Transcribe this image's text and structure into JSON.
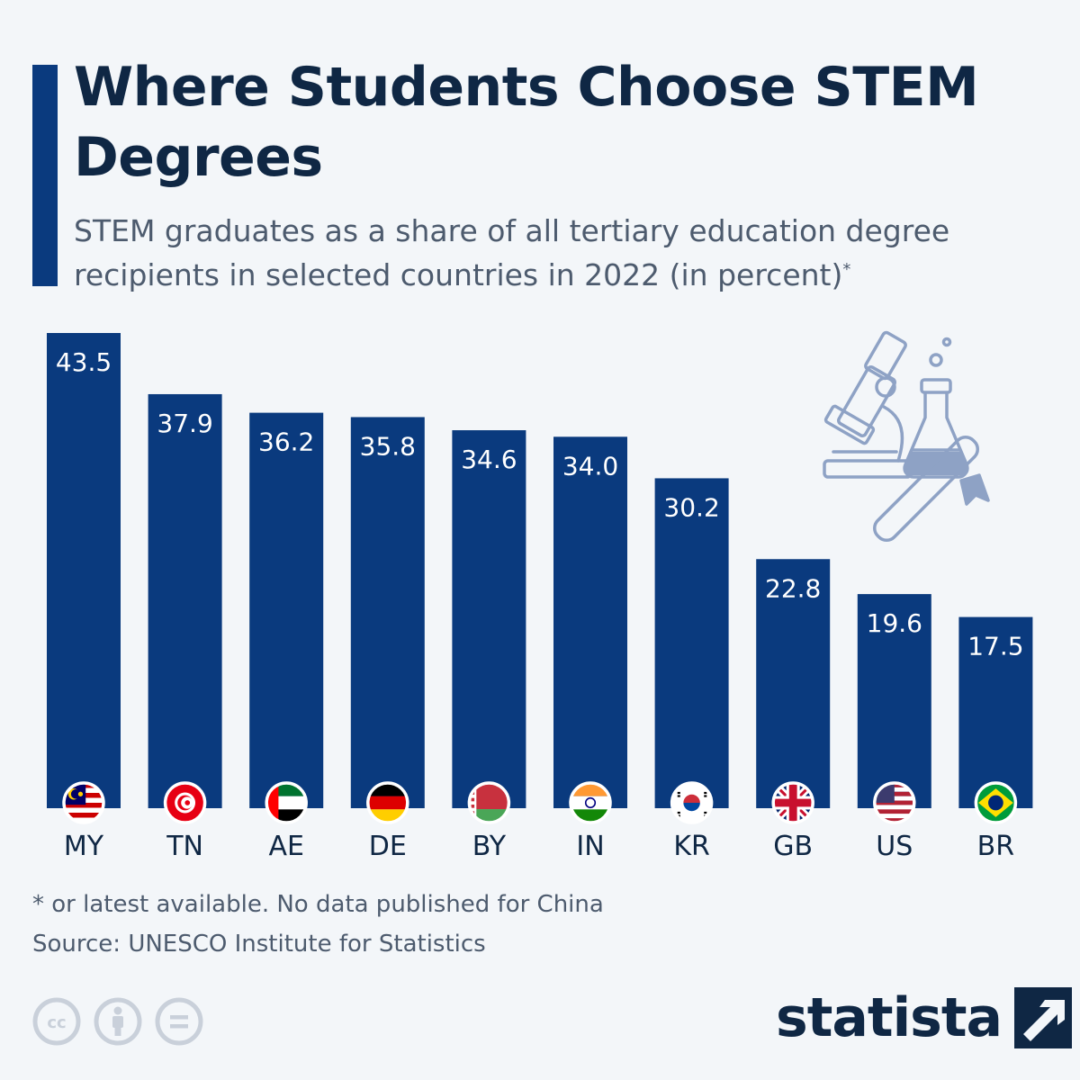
{
  "header": {
    "title": "Where Students Choose STEM Degrees",
    "subtitle": "STEM graduates as a share of all tertiary education degree recipients in selected countries in 2022 (in percent)",
    "subtitle_marker": "*"
  },
  "footer": {
    "footnote": "* or latest available. No data published for China",
    "source": "Source: UNESCO Institute for Statistics",
    "brand": "statista"
  },
  "colors": {
    "accent": "#0a3a7e",
    "bar": "#0a3a7e",
    "title": "#0f2744",
    "muted": "#4d5b6e",
    "background": "#f3f6f9",
    "illustration": "#8ea2c5"
  },
  "icons": {
    "license": [
      "creative-commons-icon",
      "attribution-icon",
      "no-derivatives-icon"
    ],
    "illustration": [
      "microscope-icon",
      "flask-icon",
      "diploma-icon"
    ],
    "brand_logo": "statista-logo-icon"
  },
  "chart_data": {
    "type": "bar",
    "title": "Where Students Choose STEM Degrees",
    "categories": [
      "MY",
      "TN",
      "AE",
      "DE",
      "BY",
      "IN",
      "KR",
      "GB",
      "US",
      "BR"
    ],
    "flags": [
      "malaysia-flag-icon",
      "tunisia-flag-icon",
      "uae-flag-icon",
      "germany-flag-icon",
      "belarus-flag-icon",
      "india-flag-icon",
      "south-korea-flag-icon",
      "uk-flag-icon",
      "usa-flag-icon",
      "brazil-flag-icon"
    ],
    "values": [
      43.5,
      37.9,
      36.2,
      35.8,
      34.6,
      34.0,
      30.2,
      22.8,
      19.6,
      17.5
    ],
    "value_labels": [
      "43.5",
      "37.9",
      "36.2",
      "35.8",
      "34.6",
      "34.0",
      "30.2",
      "22.8",
      "19.6",
      "17.5"
    ],
    "ylim": [
      0,
      43.5
    ],
    "grid": false,
    "legend": "none"
  }
}
